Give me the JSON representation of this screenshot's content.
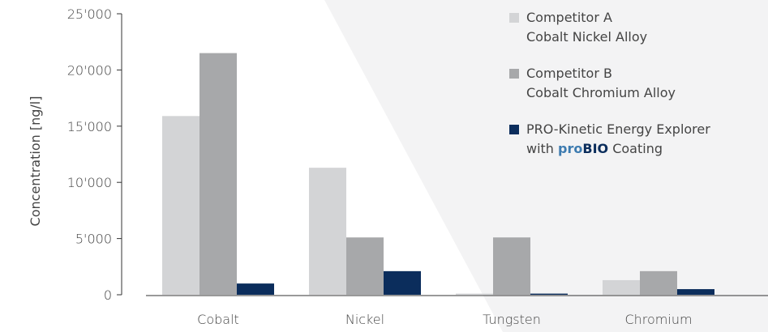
{
  "chart_data": {
    "type": "bar",
    "categories": [
      "Cobalt",
      "Nickel",
      "Tungsten",
      "Chromium"
    ],
    "series": [
      {
        "name": "Competitor A\nCobalt Nickel Alloy",
        "color": "#d3d4d6",
        "values": [
          15900,
          11300,
          100,
          1300
        ]
      },
      {
        "name": "Competitor B\nCobalt Chromium Alloy",
        "color": "#a7a8aa",
        "values": [
          21500,
          5100,
          5100,
          2100
        ]
      },
      {
        "name": "PRO-Kinetic Energy Explorer with proBIO Coating",
        "color": "#0b2d5c",
        "values": [
          1000,
          2100,
          100,
          500
        ]
      }
    ],
    "ylabel": "Concentration [ng/l]",
    "ylim": [
      0,
      25000
    ],
    "yticks": [
      0,
      5000,
      10000,
      15000,
      20000,
      25000
    ],
    "ytick_labels": [
      "0",
      "5'000",
      "10'000",
      "15'000",
      "20'000",
      "25'000"
    ],
    "grid": false,
    "legend_position": "top-right"
  },
  "legend": {
    "items": [
      {
        "line1": "Competitor A",
        "line2": "Cobalt Nickel Alloy"
      },
      {
        "line1": "Competitor B",
        "line2": "Cobalt Chromium Alloy"
      },
      {
        "line1": "PRO-Kinetic Energy Explorer",
        "prefix": "with ",
        "brand_pro": "pro",
        "brand_bio": "BIO",
        "suffix": " Coating"
      }
    ]
  }
}
